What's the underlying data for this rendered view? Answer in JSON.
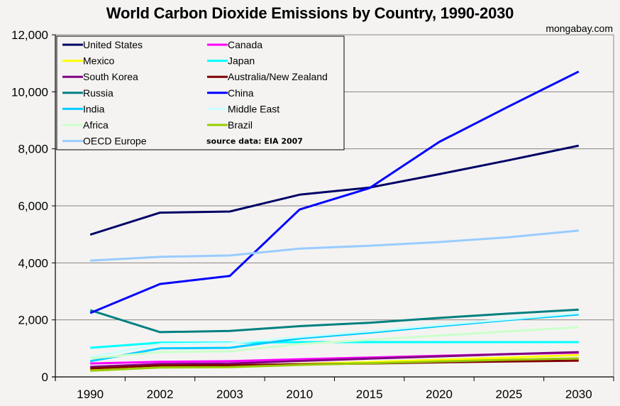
{
  "chart_data": {
    "type": "line",
    "title": "World Carbon Dioxide Emissions by Country, 1990-2030",
    "credit": "mongabay.com",
    "source_note": "source data: EIA 2007",
    "xlabel": "",
    "ylabel": "",
    "categories": [
      "1990",
      "2002",
      "2003",
      "2010",
      "2015",
      "2020",
      "2025",
      "2030"
    ],
    "ylim": [
      0,
      12000
    ],
    "yticks": [
      0,
      2000,
      4000,
      6000,
      8000,
      10000,
      12000
    ],
    "ytick_labels": [
      "0",
      "2,000",
      "4,000",
      "6,000",
      "8,000",
      "10,000",
      "12,000"
    ],
    "grid": true,
    "legend_position": "top-left",
    "series": [
      {
        "name": "United States",
        "color": "#000066",
        "values": [
          4990,
          5760,
          5800,
          6390,
          6640,
          7110,
          7600,
          8110
        ]
      },
      {
        "name": "Canada",
        "color": "#ff00ff",
        "values": [
          470,
          530,
          550,
          620,
          680,
          740,
          800,
          850
        ]
      },
      {
        "name": "Mexico",
        "color": "#ffff00",
        "values": [
          250,
          380,
          390,
          450,
          520,
          600,
          680,
          770
        ]
      },
      {
        "name": "Japan",
        "color": "#00ffff",
        "values": [
          1020,
          1200,
          1200,
          1220,
          1220,
          1220,
          1220,
          1220
        ]
      },
      {
        "name": "South Korea",
        "color": "#800080",
        "values": [
          350,
          450,
          470,
          560,
          640,
          720,
          800,
          870
        ]
      },
      {
        "name": "Australia/New Zealand",
        "color": "#800000",
        "values": [
          300,
          400,
          410,
          440,
          470,
          510,
          540,
          570
        ]
      },
      {
        "name": "Russia",
        "color": "#008080",
        "values": [
          2340,
          1570,
          1610,
          1780,
          1900,
          2070,
          2220,
          2360
        ]
      },
      {
        "name": "China",
        "color": "#0000ff",
        "values": [
          2240,
          3260,
          3540,
          5870,
          6620,
          8240,
          9490,
          10710
        ]
      },
      {
        "name": "India",
        "color": "#00ccff",
        "values": [
          550,
          1000,
          1020,
          1350,
          1550,
          1780,
          2000,
          2190
        ]
      },
      {
        "name": "Middle East",
        "color": "#ccffff",
        "values": [
          700,
          1150,
          1180,
          1400,
          1600,
          1820,
          2030,
          2240
        ]
      },
      {
        "name": "Africa",
        "color": "#ccffcc",
        "values": [
          650,
          870,
          900,
          1150,
          1300,
          1450,
          1600,
          1740
        ]
      },
      {
        "name": "Brazil",
        "color": "#99cc00",
        "values": [
          220,
          330,
          340,
          420,
          480,
          540,
          600,
          650
        ]
      },
      {
        "name": "OECD Europe",
        "color": "#99ccff",
        "values": [
          4080,
          4210,
          4260,
          4500,
          4600,
          4730,
          4900,
          5130
        ]
      }
    ]
  }
}
